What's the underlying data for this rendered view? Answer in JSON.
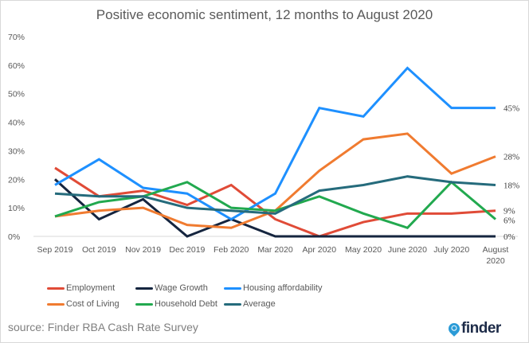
{
  "chart_data": {
    "type": "line",
    "title": "Positive economic sentiment, 12 months to August 2020",
    "xlabel": "",
    "ylabel": "",
    "ylim": [
      0,
      70
    ],
    "yticks": [
      "0%",
      "10%",
      "20%",
      "30%",
      "40%",
      "50%",
      "60%",
      "70%"
    ],
    "ytick_values": [
      0,
      10,
      20,
      30,
      40,
      50,
      60,
      70
    ],
    "grid": false,
    "legend_position": "bottom",
    "categories": [
      "Sep 2019",
      "Oct 2019",
      "Nov 2019",
      "Dec 2019",
      "Feb 2020",
      "Mar 2020",
      "Apr 2020",
      "May 2020",
      "June 2020",
      "July 2020",
      "August 2020"
    ],
    "category_lines": [
      [
        "Sep 2019"
      ],
      [
        "Oct 2019"
      ],
      [
        "Nov 2019"
      ],
      [
        "Dec 2019"
      ],
      [
        "Feb 2020"
      ],
      [
        "Mar 2020"
      ],
      [
        "Apr 2020"
      ],
      [
        "May 2020"
      ],
      [
        "June 2020"
      ],
      [
        "July 2020"
      ],
      [
        "August",
        "2020"
      ]
    ],
    "series": [
      {
        "name": "Employment",
        "color": "#e04b37",
        "values": [
          24,
          14,
          16,
          11,
          18,
          6,
          0,
          5,
          8,
          8,
          9
        ]
      },
      {
        "name": "Wage Growth",
        "color": "#15253f",
        "values": [
          20,
          6,
          13,
          0,
          6,
          0,
          0,
          0,
          0,
          0,
          0
        ]
      },
      {
        "name": "Housing affordability",
        "color": "#1e90ff",
        "values": [
          18,
          27,
          17,
          15,
          6,
          15,
          45,
          42,
          59,
          45,
          45
        ]
      },
      {
        "name": "Cost of Living",
        "color": "#f07b30",
        "values": [
          7,
          9,
          10,
          4,
          3,
          9,
          23,
          34,
          36,
          22,
          28
        ]
      },
      {
        "name": "Household Debt",
        "color": "#22a94f",
        "values": [
          7,
          12,
          14,
          19,
          10,
          9,
          14,
          8,
          3,
          19,
          6
        ]
      },
      {
        "name": "Average",
        "color": "#256b7c",
        "values": [
          15,
          14,
          14,
          10,
          9,
          8,
          16,
          18,
          21,
          19,
          18
        ]
      }
    ],
    "end_labels": [
      {
        "series": "Housing affordability",
        "text": "45%"
      },
      {
        "series": "Cost of Living",
        "text": "28%"
      },
      {
        "series": "Average",
        "text": "18%"
      },
      {
        "series": "Employment",
        "text": "9%"
      },
      {
        "series": "Household Debt",
        "text": "6%"
      },
      {
        "series": "Wage Growth",
        "text": "0%"
      }
    ]
  },
  "footer": {
    "source": "source: Finder RBA Cash Rate Survey",
    "logo_text": "finder"
  }
}
